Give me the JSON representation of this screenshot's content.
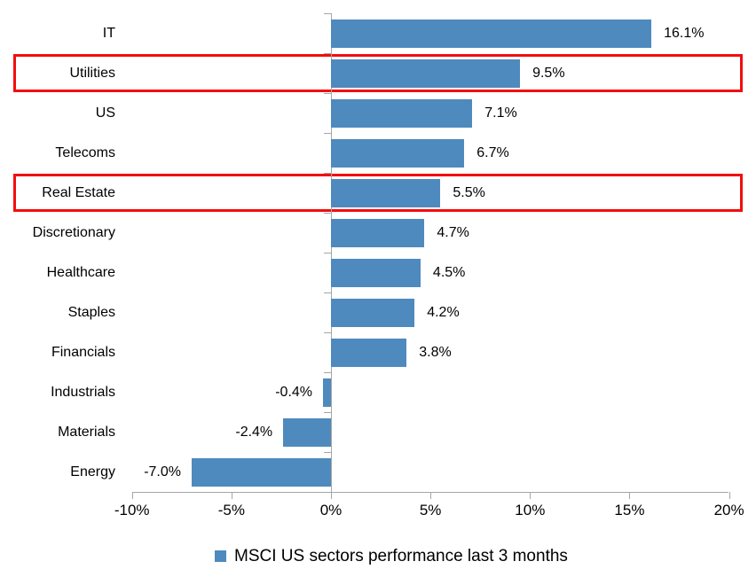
{
  "chart_data": {
    "type": "bar",
    "orientation": "horizontal",
    "title": "",
    "xlabel": "",
    "ylabel": "",
    "categories": [
      "IT",
      "Utilities",
      "US",
      "Telecoms",
      "Real Estate",
      "Discretionary",
      "Healthcare",
      "Staples",
      "Financials",
      "Industrials",
      "Materials",
      "Energy"
    ],
    "values": [
      16.1,
      9.5,
      7.1,
      6.7,
      5.5,
      4.7,
      4.5,
      4.2,
      3.8,
      -0.4,
      -2.4,
      -7.0
    ],
    "value_labels": [
      "16.1%",
      "9.5%",
      "7.1%",
      "6.7%",
      "5.5%",
      "4.7%",
      "4.5%",
      "4.2%",
      "3.8%",
      "-0.4%",
      "-2.4%",
      "-7.0%"
    ],
    "highlighted": [
      "Utilities",
      "Real Estate"
    ],
    "x_ticks": [
      "-10%",
      "-5%",
      "0%",
      "5%",
      "10%",
      "15%",
      "20%"
    ],
    "x_tick_values": [
      -10,
      -5,
      0,
      5,
      10,
      15,
      20
    ],
    "xlim": [
      -10,
      20
    ],
    "grid": false,
    "legend": "MSCI US sectors performance last 3 months",
    "legend_position": "bottom-center",
    "bar_color": "#4e8abd",
    "highlight_color": "#f30d0d",
    "axis_color": "#a6a6a6",
    "text_color": "#000000"
  }
}
